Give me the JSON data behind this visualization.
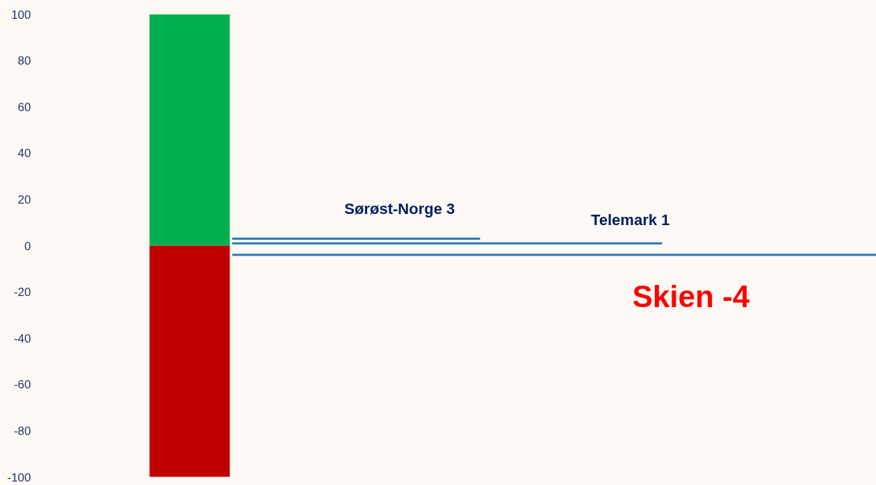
{
  "chart_data": {
    "type": "bar",
    "stacked": true,
    "categories": [
      null
    ],
    "series": [
      {
        "color": "#00b050",
        "values": [
          100
        ]
      },
      {
        "color": "#c00000",
        "values": [
          -100
        ]
      }
    ],
    "ylim": [
      -100,
      100
    ],
    "yticks": [
      -100,
      -80,
      -60,
      -40,
      -20,
      0,
      20,
      40,
      60,
      80,
      100
    ],
    "grid": false,
    "tick_labels": "y",
    "ref_lines": [
      {
        "axis": "y",
        "value": 3,
        "label": "Sørøst-Norge 3",
        "color": "#2e75b6"
      },
      {
        "axis": "y",
        "value": 1,
        "label": "Telemark 1",
        "color": "#2e75b6"
      },
      {
        "axis": "y",
        "value": -4,
        "label": "Skien -4",
        "color": "#2e75b6"
      }
    ]
  }
}
